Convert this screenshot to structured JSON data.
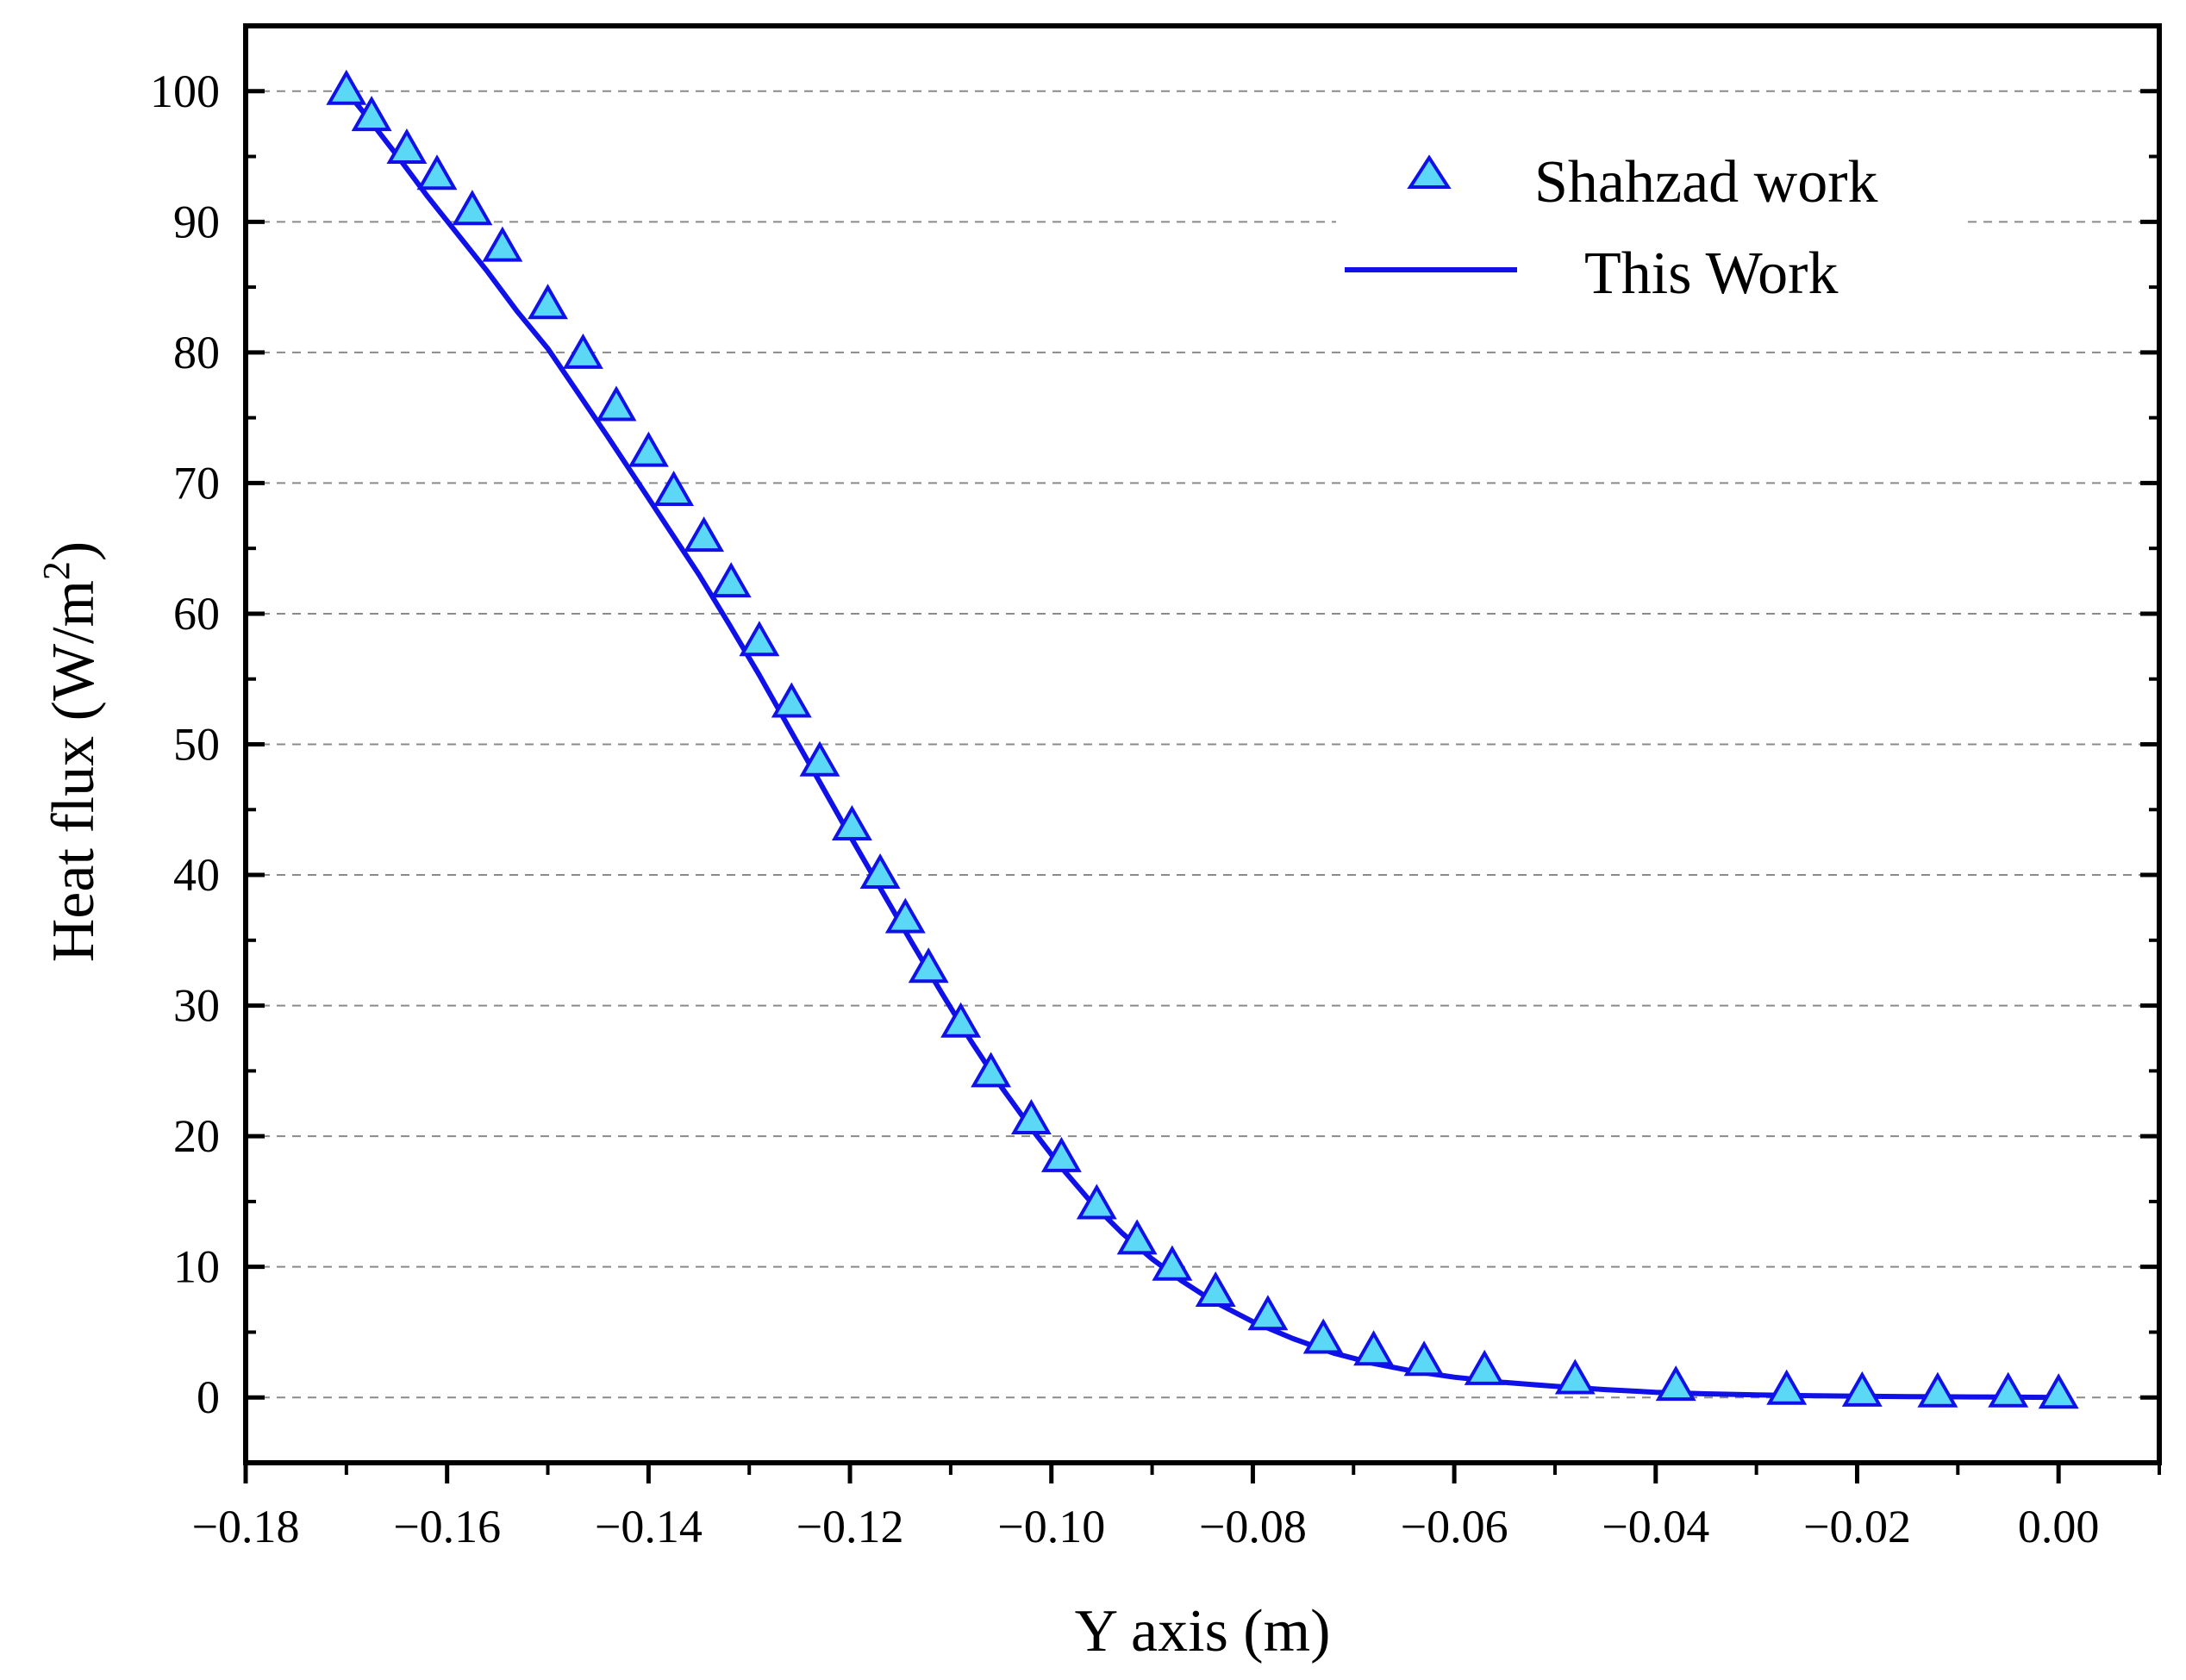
{
  "chart_data": {
    "type": "line",
    "title": "",
    "xlabel": "Y axis (m)",
    "ylabel_main": "Heat flux (W/m",
    "ylabel_sup": "2",
    "ylabel_close": ")",
    "xlim": [
      -0.18,
      0.01
    ],
    "ylim": [
      -5,
      105
    ],
    "xticks": [
      -0.18,
      -0.16,
      -0.14,
      -0.12,
      -0.1,
      -0.08,
      -0.06,
      -0.04,
      -0.02,
      0.0
    ],
    "xtick_labels": [
      "−0.18",
      "−0.16",
      "−0.14",
      "−0.12",
      "−0.10",
      "−0.08",
      "−0.06",
      "−0.04",
      "−0.02",
      "0.00"
    ],
    "yticks": [
      0,
      10,
      20,
      30,
      40,
      50,
      60,
      70,
      80,
      90,
      100
    ],
    "ytick_labels": [
      "0",
      "10",
      "20",
      "30",
      "40",
      "50",
      "60",
      "70",
      "80",
      "90",
      "100"
    ],
    "grid": "horizontal dashed",
    "legend_position": "top-right",
    "colors": {
      "line": "#1010e8",
      "marker_fill": "#5ad8f5",
      "marker_edge": "#1010e8",
      "axis": "#000000",
      "grid": "#8a8a8a"
    },
    "series": [
      {
        "name": "Shahzad work",
        "style": "triangle-markers",
        "x": [
          -0.17,
          -0.1675,
          -0.164,
          -0.161,
          -0.1575,
          -0.1545,
          -0.15,
          -0.1465,
          -0.1432,
          -0.14,
          -0.1375,
          -0.1345,
          -0.1318,
          -0.129,
          -0.1258,
          -0.123,
          -0.1198,
          -0.117,
          -0.1145,
          -0.1122,
          -0.109,
          -0.106,
          -0.102,
          -0.099,
          -0.0955,
          -0.0915,
          -0.088,
          -0.0837,
          -0.0785,
          -0.073,
          -0.068,
          -0.063,
          -0.057,
          -0.048,
          -0.038,
          -0.027,
          -0.0195,
          -0.012,
          -0.005,
          0.0
        ],
        "y": [
          100.0,
          98.0,
          95.5,
          93.5,
          90.8,
          88.0,
          83.6,
          79.8,
          75.8,
          72.3,
          69.3,
          65.8,
          62.3,
          57.8,
          53.1,
          48.6,
          43.7,
          40.0,
          36.6,
          32.8,
          28.6,
          24.8,
          21.2,
          18.3,
          14.7,
          12.0,
          10.0,
          8.0,
          6.2,
          4.4,
          3.5,
          2.7,
          2.0,
          1.3,
          0.8,
          0.5,
          0.35,
          0.3,
          0.3,
          0.2
        ]
      },
      {
        "name": "This Work",
        "style": "solid-line",
        "x": [
          -0.17,
          -0.168,
          -0.165,
          -0.162,
          -0.159,
          -0.156,
          -0.153,
          -0.15,
          -0.147,
          -0.144,
          -0.141,
          -0.138,
          -0.135,
          -0.132,
          -0.129,
          -0.126,
          -0.123,
          -0.12,
          -0.117,
          -0.114,
          -0.111,
          -0.108,
          -0.105,
          -0.102,
          -0.099,
          -0.096,
          -0.093,
          -0.09,
          -0.087,
          -0.084,
          -0.08,
          -0.076,
          -0.072,
          -0.068,
          -0.064,
          -0.06,
          -0.055,
          -0.05,
          -0.045,
          -0.04,
          -0.035,
          -0.03,
          -0.025,
          -0.02,
          -0.015,
          -0.01,
          -0.005,
          0.0
        ],
        "y": [
          100.0,
          98.1,
          95.1,
          92.0,
          89.1,
          86.2,
          83.1,
          80.3,
          76.9,
          73.5,
          70.0,
          66.5,
          63.0,
          59.2,
          55.3,
          51.2,
          47.1,
          43.0,
          39.0,
          35.0,
          31.1,
          27.3,
          23.8,
          20.6,
          17.6,
          14.9,
          12.6,
          10.6,
          8.9,
          7.4,
          5.8,
          4.5,
          3.4,
          2.6,
          2.0,
          1.55,
          1.15,
          0.85,
          0.6,
          0.4,
          0.28,
          0.2,
          0.14,
          0.1,
          0.07,
          0.05,
          0.03,
          0.0
        ]
      }
    ]
  }
}
